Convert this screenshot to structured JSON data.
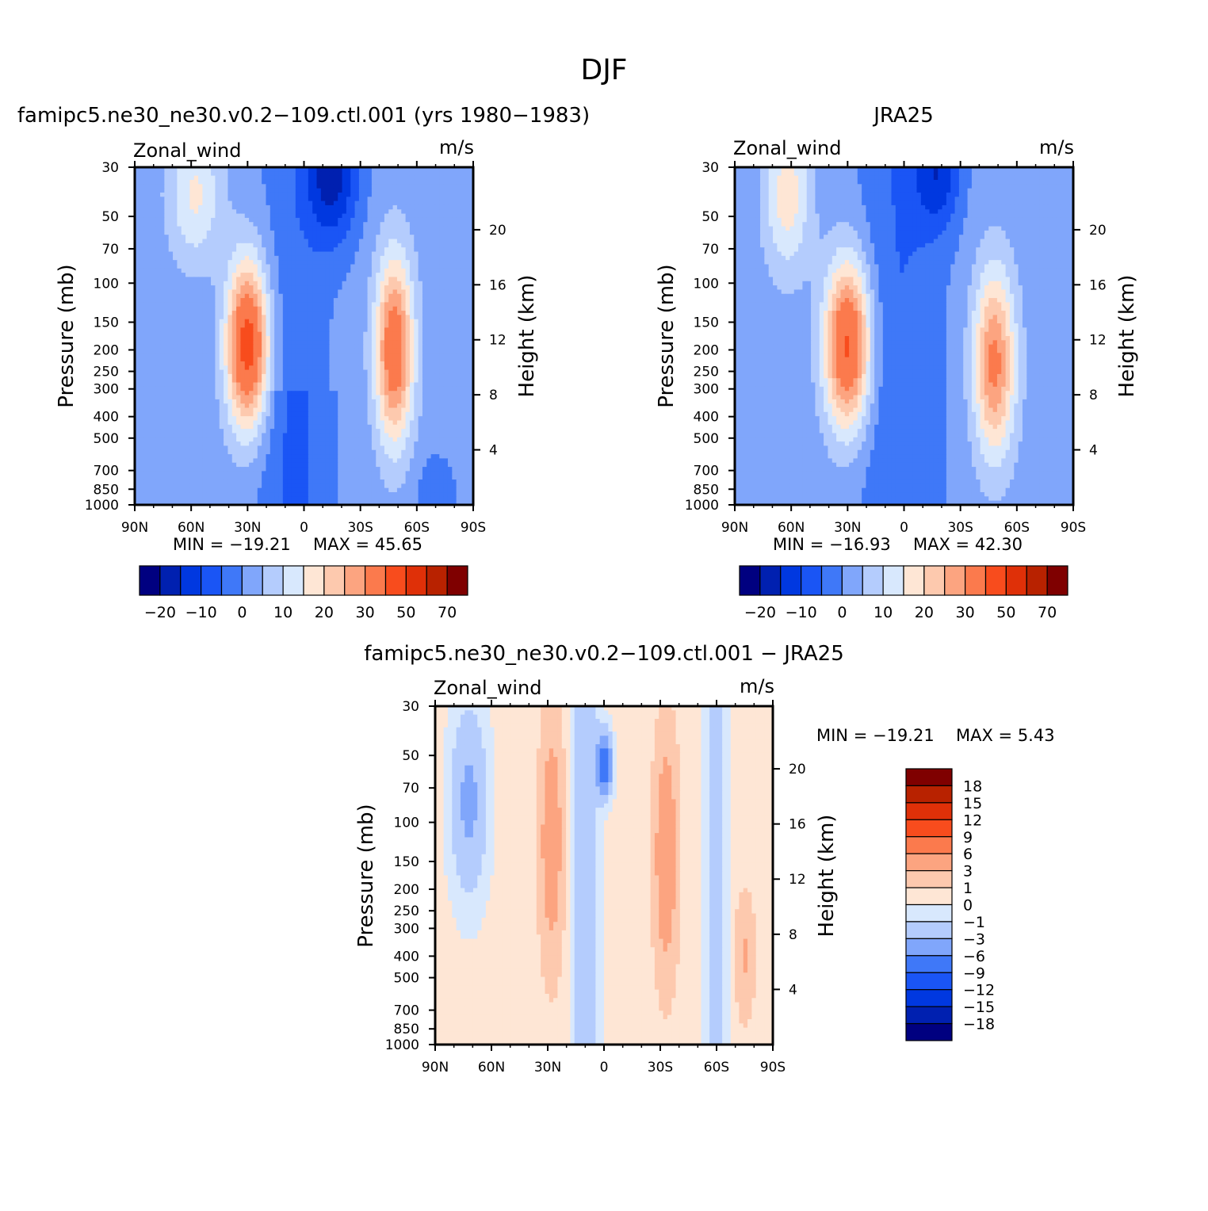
{
  "figure": {
    "title": "DJF"
  },
  "palettes": {
    "abs": [
      "#000080",
      "#0020b0",
      "#0038e0",
      "#1a55f5",
      "#3f78f8",
      "#80a6fb",
      "#b4ccfd",
      "#d8e8fd",
      "#fee6d5",
      "#fdc9ae",
      "#fca480",
      "#fb7a4d",
      "#f84c1d",
      "#df3008",
      "#b82200",
      "#7f0000"
    ],
    "diff": [
      "#000080",
      "#0020b0",
      "#0038e0",
      "#1a55f5",
      "#3f78f8",
      "#80a6fb",
      "#b4ccfd",
      "#d8e8fd",
      "#fee6d5",
      "#fdc9ae",
      "#fca480",
      "#fb7a4d",
      "#f84c1d",
      "#df3008",
      "#b82200",
      "#7f0000"
    ]
  },
  "chart_data": [
    {
      "type": "heatmap",
      "title": "famipc5.ne30_ne30.v0.2−109.ctl.001 (yrs 1980−1983)",
      "variable": "Zonal_wind",
      "units": "m/s",
      "ylabel": "Pressure (mb)",
      "y2label": "Height (km)",
      "x_ticks": [
        "90N",
        "60N",
        "30N",
        "0",
        "30S",
        "60S",
        "90S"
      ],
      "y_ticks": [
        "30",
        "50",
        "70",
        "100",
        "150",
        "200",
        "250",
        "300",
        "400",
        "500",
        "700",
        "850",
        "1000"
      ],
      "y2_ticks": [
        "20",
        "16",
        "12",
        "8",
        "4"
      ],
      "min_label": "MIN = −19.21",
      "max_label": "MAX = 45.65",
      "min": -19.21,
      "max": 45.65,
      "colorbar_labels": [
        "−20",
        "−10",
        "0",
        "10",
        "20",
        "30",
        "50",
        "70"
      ],
      "features": [
        {
          "lat": 30,
          "p": 180,
          "peak": 45.65
        },
        {
          "lat": -48,
          "p": 200,
          "peak": 35
        },
        {
          "lat": -18,
          "p": 40,
          "peak": -19.21
        }
      ]
    },
    {
      "type": "heatmap",
      "title": "JRA25",
      "variable": "Zonal_wind",
      "units": "m/s",
      "ylabel": "Pressure (mb)",
      "y2label": "Height (km)",
      "x_ticks": [
        "90N",
        "60N",
        "30N",
        "0",
        "30S",
        "60S",
        "90S"
      ],
      "y_ticks": [
        "30",
        "50",
        "70",
        "100",
        "150",
        "200",
        "250",
        "300",
        "400",
        "500",
        "700",
        "850",
        "1000"
      ],
      "y2_ticks": [
        "20",
        "16",
        "12",
        "8",
        "4"
      ],
      "min_label": "MIN = −16.93",
      "max_label": "MAX = 42.30",
      "min": -16.93,
      "max": 42.3,
      "colorbar_labels": [
        "−20",
        "−10",
        "0",
        "10",
        "20",
        "30",
        "50",
        "70"
      ],
      "features": [
        {
          "lat": 30,
          "p": 180,
          "peak": 42.3
        },
        {
          "lat": -48,
          "p": 230,
          "peak": 30
        },
        {
          "lat": -18,
          "p": 35,
          "peak": -16.93
        }
      ]
    },
    {
      "type": "heatmap",
      "title": "famipc5.ne30_ne30.v0.2−109.ctl.001 − JRA25",
      "variable": "Zonal_wind",
      "units": "m/s",
      "ylabel": "Pressure (mb)",
      "y2label": "Height (km)",
      "x_ticks": [
        "90N",
        "60N",
        "30N",
        "0",
        "30S",
        "60S",
        "90S"
      ],
      "y_ticks": [
        "30",
        "50",
        "70",
        "100",
        "150",
        "200",
        "250",
        "300",
        "400",
        "500",
        "700",
        "850",
        "1000"
      ],
      "y2_ticks": [
        "20",
        "16",
        "12",
        "8",
        "4"
      ],
      "min_label": "MIN = −19.21",
      "max_label": "MAX = 5.43",
      "min": -19.21,
      "max": 5.43,
      "colorbar_labels": [
        "18",
        "15",
        "12",
        "9",
        "6",
        "3",
        "1",
        "0",
        "−1",
        "−3",
        "−6",
        "−9",
        "−12",
        "−15",
        "−18"
      ]
    }
  ]
}
